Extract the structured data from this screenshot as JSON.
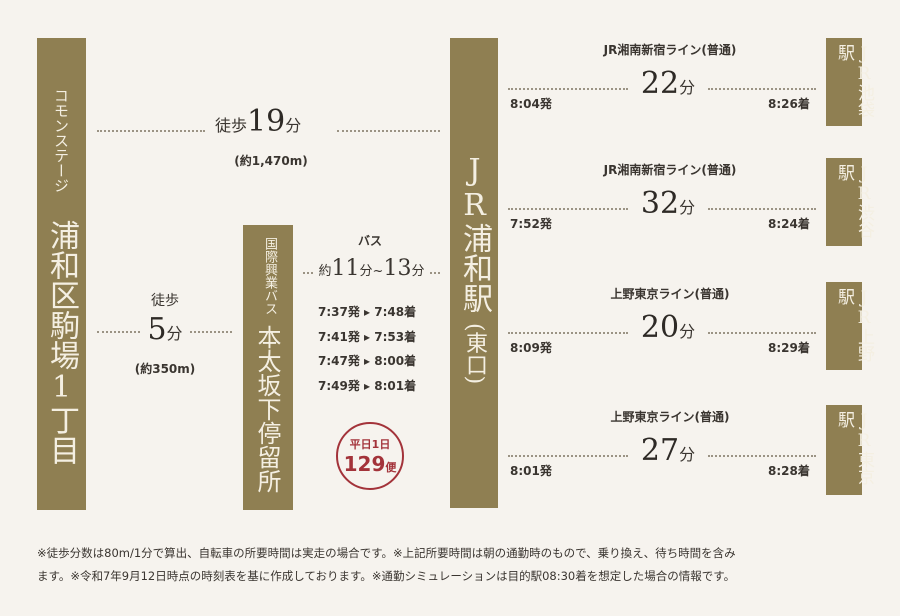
{
  "origin": {
    "subtitle": "コモンステージ",
    "name": "浦和区駒場1丁目"
  },
  "walk_station": {
    "label": "徒歩",
    "minutes": "19",
    "unit": "分",
    "distance": "(約1,470m)"
  },
  "walk_bus": {
    "label": "徒歩",
    "minutes": "5",
    "unit": "分",
    "distance": "(約350m)"
  },
  "bus_stop": {
    "operator": "国際興業バス",
    "name": "本太坂下停留所"
  },
  "bus": {
    "label": "バス",
    "prefix": "約",
    "from": "11",
    "sep1": "分~",
    "to": "13",
    "unit": "分",
    "times": [
      "7:37発 ▸ 7:48着",
      "7:41発 ▸ 7:53着",
      "7:47発 ▸ 8:00着",
      "7:49発 ▸ 8:01着"
    ],
    "badge": {
      "top": "平日1日",
      "count": "129",
      "unit": "便"
    }
  },
  "station": {
    "name": "JR浦和駅",
    "exit": "(東口)"
  },
  "routes": [
    {
      "line": "JR湘南新宿ライン(普通)",
      "minutes": "22",
      "unit": "分",
      "depart": "8:04発",
      "arrive": "8:26着",
      "dest": "JR池袋駅"
    },
    {
      "line": "JR湘南新宿ライン(普通)",
      "minutes": "32",
      "unit": "分",
      "depart": "7:52発",
      "arrive": "8:24着",
      "dest": "JR渋谷駅"
    },
    {
      "line": "上野東京ライン(普通)",
      "minutes": "20",
      "unit": "分",
      "depart": "8:09発",
      "arrive": "8:29着",
      "dest": "JR上野駅"
    },
    {
      "line": "上野東京ライン(普通)",
      "minutes": "27",
      "unit": "分",
      "depart": "8:01発",
      "arrive": "8:28着",
      "dest": "JR東京駅"
    }
  ],
  "notes": [
    "※徒歩分数は80m/1分で算出、自転車の所要時間は実走の場合です。※上記所要時間は朝の通勤時のもので、乗り換え、待ち時間を含み",
    "ます。※令和7年9月12日時点の時刻表を基に作成しております。※通勤シミュレーションは目的駅08:30着を想定した場合の情報です。"
  ],
  "colors": {
    "gold": "#8f7f52",
    "background": "#f6f3ee",
    "badge": "#a3333a"
  }
}
